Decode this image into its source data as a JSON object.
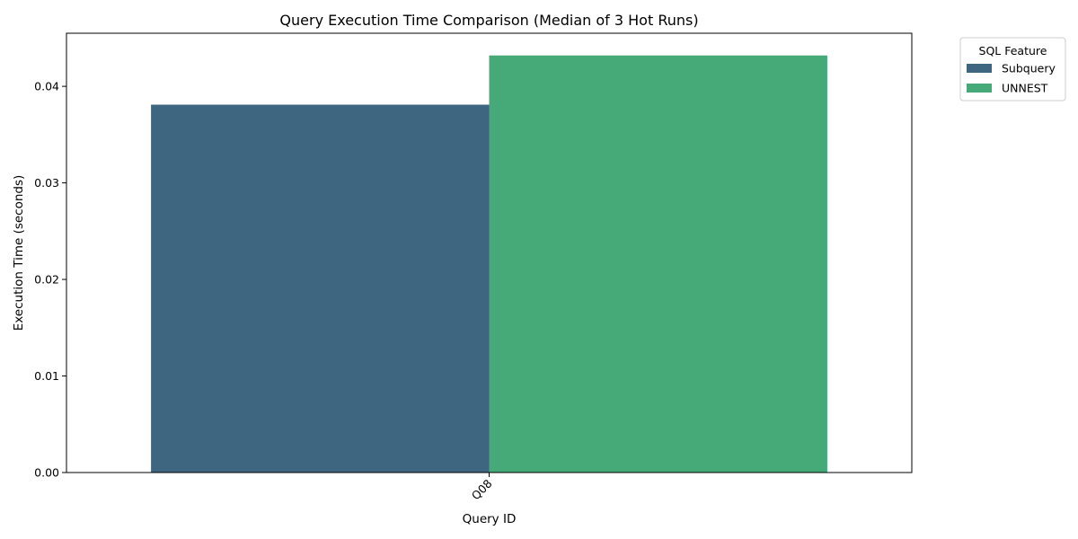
{
  "chart_data": {
    "type": "bar",
    "title": "Query Execution Time Comparison (Median of 3 Hot Runs)",
    "xlabel": "Query ID",
    "ylabel": "Execution Time (seconds)",
    "categories": [
      "Q08"
    ],
    "series": [
      {
        "name": "Subquery",
        "values": [
          0.0381
        ],
        "color": "#3f6681"
      },
      {
        "name": "UNNEST",
        "values": [
          0.0432
        ],
        "color": "#46a978"
      }
    ],
    "ylim": [
      0,
      0.0455
    ],
    "yticks": [
      0.0,
      0.01,
      0.02,
      0.03,
      0.04
    ],
    "ytick_labels": [
      "0.00",
      "0.01",
      "0.02",
      "0.03",
      "0.04"
    ],
    "xtick_rotation": -45,
    "grid": false,
    "legend": {
      "title": "SQL Feature",
      "placement": "outside-top-right"
    }
  }
}
